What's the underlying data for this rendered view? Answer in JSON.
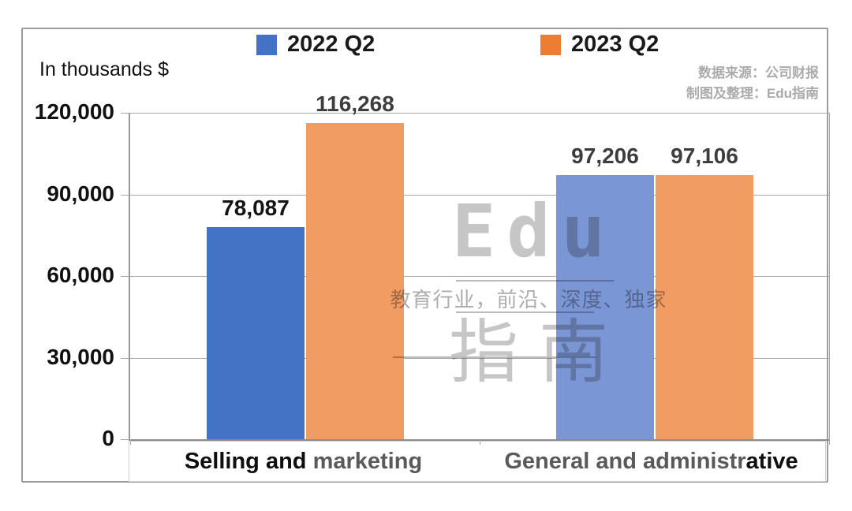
{
  "legend": {
    "items": [
      {
        "label": "2022 Q2",
        "color": "#4472C4"
      },
      {
        "label": "2023 Q2",
        "color": "#ED7D31"
      }
    ]
  },
  "source": {
    "line1": "数据来源：公司财报",
    "line2": "制图及整理：Edu指南",
    "color": "#ababab"
  },
  "watermark": {
    "brand": "Edu",
    "tagline": "教育行业，前沿、深度、独家",
    "brand2": "指南",
    "color": "#c6c6c6"
  },
  "chart_data": {
    "type": "bar",
    "title": "",
    "ylabel": "In thousands $",
    "xlabel": "",
    "categories": [
      "Selling and marketing",
      "General and administrative"
    ],
    "categories_runs": [
      [
        {
          "text": "Selling and ",
          "tone": "dark"
        },
        {
          "text": "marketing",
          "tone": "gray"
        }
      ],
      [
        {
          "text": "General and administr",
          "tone": "gray"
        },
        {
          "text": "ative",
          "tone": "dark"
        }
      ]
    ],
    "series": [
      {
        "name": "2022 Q2",
        "values": [
          78087,
          97206
        ],
        "labels": [
          "78,087",
          "97,206"
        ],
        "colors": [
          "#4472C4",
          "#7B96D4"
        ],
        "label_colors": [
          "#141414",
          "#3d3d3d"
        ]
      },
      {
        "name": "2023 Q2",
        "values": [
          116268,
          97106
        ],
        "labels": [
          "116,268",
          "97,106"
        ],
        "colors": [
          "#F09C63",
          "#F09C63"
        ],
        "label_colors": [
          "#3d3d3d",
          "#3d3d3d"
        ]
      }
    ],
    "ylim": [
      0,
      120000
    ],
    "yticks": [
      0,
      30000,
      60000,
      90000,
      120000
    ],
    "ytick_labels": [
      "0",
      "30,000",
      "60,000",
      "90,000",
      "120,000"
    ],
    "grid": true,
    "legend_position": "top"
  }
}
